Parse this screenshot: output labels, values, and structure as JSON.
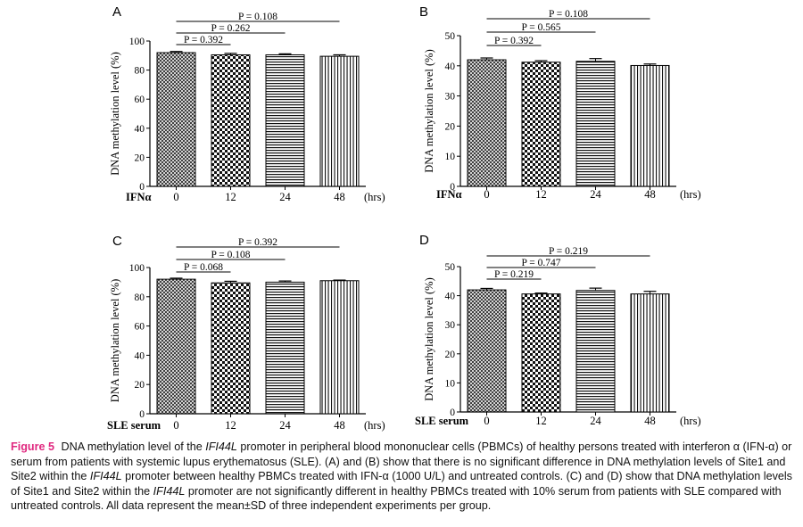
{
  "caption": {
    "label": "Figure 5",
    "parts": [
      {
        "t": "DNA methylation level of the "
      },
      {
        "t": "IFI44L",
        "i": true
      },
      {
        "t": " promoter in peripheral blood mononuclear cells (PBMCs) of healthy persons treated with interferon α (IFN-α) or serum from patients with systemic lupus erythematosus (SLE). (A) and (B) show that there is no significant difference in DNA methylation levels of Site1 and Site2 within the "
      },
      {
        "t": "IFI44L",
        "i": true
      },
      {
        "t": " promoter between healthy PBMCs treated with IFN-α (1000 U/L) and untreated controls. (C) and (D) show that DNA methylation levels of Site1 and Site2 within the "
      },
      {
        "t": "IFI44L",
        "i": true
      },
      {
        "t": " promoter are not significantly different in healthy PBMCs treated with 10% serum from patients with SLE compared with untreated controls. All data represent the mean±SD of three independent experiments per group."
      }
    ]
  },
  "chart_data": [
    {
      "panel": "A",
      "type": "bar",
      "treatment_label": "IFNα",
      "unit_label": "(hrs)",
      "categories": [
        "0",
        "12",
        "24",
        "48"
      ],
      "values": [
        92,
        90.5,
        90.5,
        89.5
      ],
      "errors": [
        0.8,
        1.0,
        0.7,
        1.0
      ],
      "ylabel": "DNA methylation level (%)",
      "ylim": [
        0,
        100
      ],
      "yticks": [
        0,
        20,
        40,
        60,
        80,
        100
      ],
      "comparisons": [
        {
          "label": "P = 0.108",
          "to": 3
        },
        {
          "label": "P = 0.262",
          "to": 2
        },
        {
          "label": "P = 0.392",
          "to": 1
        }
      ],
      "patterns": [
        "diag",
        "checker",
        "hlines",
        "vlines"
      ],
      "grid": false
    },
    {
      "panel": "B",
      "type": "bar",
      "treatment_label": "IFNα",
      "unit_label": "(hrs)",
      "categories": [
        "0",
        "12",
        "24",
        "48"
      ],
      "values": [
        42,
        41.2,
        41.5,
        40.1
      ],
      "errors": [
        0.6,
        0.5,
        0.9,
        0.5
      ],
      "ylabel": "DNA methylation level (%)",
      "ylim": [
        0,
        50
      ],
      "yticks": [
        0,
        10,
        20,
        30,
        40,
        50
      ],
      "comparisons": [
        {
          "label": "P = 0.108",
          "to": 3
        },
        {
          "label": "P = 0.565",
          "to": 2
        },
        {
          "label": "P = 0.392",
          "to": 1
        }
      ],
      "patterns": [
        "diag",
        "checker",
        "hlines",
        "vlines"
      ],
      "grid": false
    },
    {
      "panel": "C",
      "type": "bar",
      "treatment_label": "SLE serum",
      "unit_label": "(hrs)",
      "categories": [
        "0",
        "12",
        "24",
        "48"
      ],
      "values": [
        92,
        89.5,
        90,
        91
      ],
      "errors": [
        0.7,
        1.1,
        0.8,
        0.4
      ],
      "ylabel": "DNA methylation level (%)",
      "ylim": [
        0,
        100
      ],
      "yticks": [
        0,
        20,
        40,
        60,
        80,
        100
      ],
      "comparisons": [
        {
          "label": "P = 0.392",
          "to": 3
        },
        {
          "label": "P = 0.108",
          "to": 2
        },
        {
          "label": "P = 0.068",
          "to": 1
        }
      ],
      "patterns": [
        "diag",
        "checker",
        "hlines",
        "vlines"
      ],
      "grid": false
    },
    {
      "panel": "D",
      "type": "bar",
      "treatment_label": "SLE serum",
      "unit_label": "(hrs)",
      "categories": [
        "0",
        "12",
        "24",
        "48"
      ],
      "values": [
        42,
        40.6,
        41.8,
        40.6
      ],
      "errors": [
        0.5,
        0.3,
        0.8,
        0.9
      ],
      "ylabel": "DNA methylation level (%)",
      "ylim": [
        0,
        50
      ],
      "yticks": [
        0,
        10,
        20,
        30,
        40,
        50
      ],
      "comparisons": [
        {
          "label": "P = 0.219",
          "to": 3
        },
        {
          "label": "P = 0.747",
          "to": 2
        },
        {
          "label": "P = 0.219",
          "to": 1
        }
      ],
      "patterns": [
        "diag",
        "checker",
        "hlines",
        "vlines"
      ],
      "grid": false
    }
  ]
}
